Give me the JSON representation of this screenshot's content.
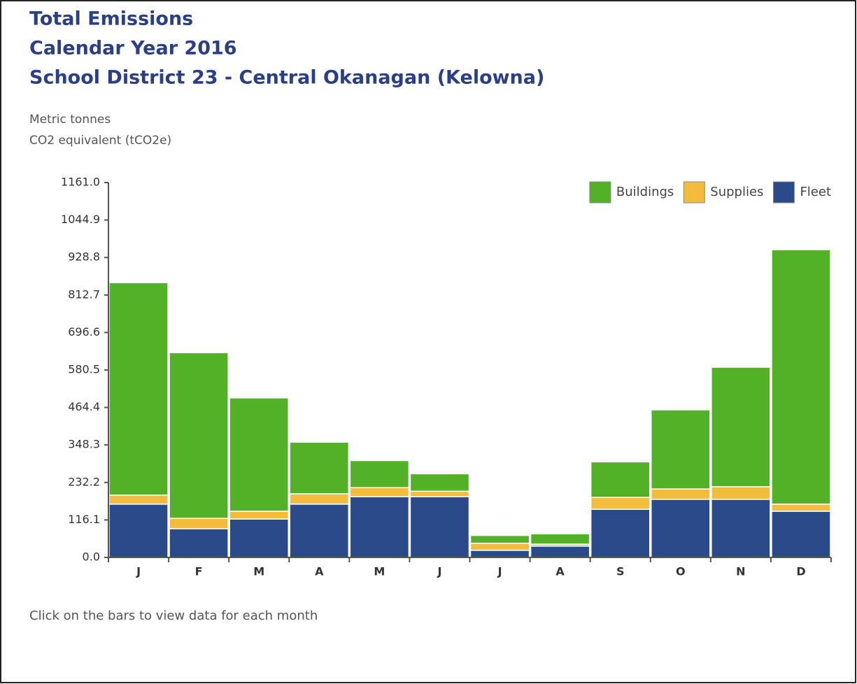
{
  "chart_data": {
    "type": "stacked_bar",
    "title": [
      "Total Emissions",
      "Calendar Year 2016",
      "School District 23 - Central Okanagan (Kelowna)"
    ],
    "y_label": [
      "Metric tonnes",
      "CO2 equivalent (tCO2e)"
    ],
    "note": "Click on the bars to view data for each month",
    "categories": [
      "J",
      "F",
      "M",
      "A",
      "M",
      "J",
      "J",
      "A",
      "S",
      "O",
      "N",
      "D"
    ],
    "series": [
      {
        "name": "Buildings",
        "color": "#52b126",
        "values": [
          658,
          513,
          351,
          160,
          84,
          54,
          24,
          32,
          110,
          245,
          370,
          788
        ]
      },
      {
        "name": "Supplies",
        "color": "#f3bc3c",
        "values": [
          28,
          32,
          24,
          32,
          28,
          17,
          22,
          6,
          37,
          32,
          39,
          22
        ]
      },
      {
        "name": "Fleet",
        "color": "#2a4a8a",
        "values": [
          165,
          89,
          119,
          165,
          188,
          188,
          22,
          35,
          149,
          180,
          180,
          143
        ]
      }
    ],
    "ylim": [
      0,
      1161
    ],
    "yticks": [
      {
        "value": 0,
        "label": "0.0"
      },
      {
        "value": 116.1,
        "label": "116.1"
      },
      {
        "value": 232.2,
        "label": "232.2"
      },
      {
        "value": 348.3,
        "label": "348.3"
      },
      {
        "value": 464.4,
        "label": "464.4"
      },
      {
        "value": 580.5,
        "label": "580.5"
      },
      {
        "value": 696.6,
        "label": "696.6"
      },
      {
        "value": 812.7,
        "label": "812.7"
      },
      {
        "value": 928.8,
        "label": "928.8"
      },
      {
        "value": 1044.9,
        "label": "1044.9"
      },
      {
        "value": 1161,
        "label": "1161.0"
      }
    ],
    "legend": "top-right"
  }
}
